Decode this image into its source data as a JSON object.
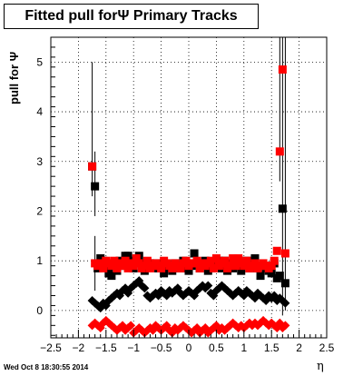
{
  "title": "Fitted pull forΨ   Primary Tracks",
  "datestamp": "Wed Oct  8 18:30:55 2014",
  "chart_data": {
    "type": "scatter",
    "title": "Fitted pull forΨ   Primary Tracks",
    "xlabel": "η",
    "ylabel": "pull for Ψ",
    "xlim": [
      -2.5,
      2.5
    ],
    "ylim": [
      -0.55,
      5.5
    ],
    "grid": true,
    "xticks": [
      -2.5,
      -2,
      -1.5,
      -1,
      -0.5,
      0,
      0.5,
      1,
      1.5,
      2,
      2.5
    ],
    "xtick_labels": [
      "−2.5",
      "−2",
      "−1.5",
      "−1",
      "−0.5",
      "0",
      "0.5",
      "1",
      "1.5",
      "2",
      "2.5"
    ],
    "yticks": [
      0,
      1,
      2,
      3,
      4,
      5
    ],
    "ytick_labels": [
      "0",
      "1",
      "2",
      "3",
      "4",
      "5"
    ],
    "x": [
      -1.75,
      -1.7,
      -1.65,
      -1.6,
      -1.55,
      -1.5,
      -1.45,
      -1.4,
      -1.35,
      -1.3,
      -1.25,
      -1.2,
      -1.15,
      -1.1,
      -1.05,
      -1.0,
      -0.95,
      -0.9,
      -0.85,
      -0.8,
      -0.75,
      -0.7,
      -0.65,
      -0.6,
      -0.55,
      -0.5,
      -0.45,
      -0.4,
      -0.35,
      -0.3,
      -0.25,
      -0.2,
      -0.15,
      -0.1,
      -0.05,
      0.0,
      0.05,
      0.1,
      0.15,
      0.2,
      0.25,
      0.3,
      0.35,
      0.4,
      0.45,
      0.5,
      0.55,
      0.6,
      0.65,
      0.7,
      0.75,
      0.8,
      0.85,
      0.9,
      0.95,
      1.0,
      1.05,
      1.1,
      1.15,
      1.2,
      1.25,
      1.3,
      1.35,
      1.4,
      1.45,
      1.5,
      1.55,
      1.6,
      1.65,
      1.7,
      1.75
    ],
    "series": [
      {
        "marker": "square",
        "color": "#000000",
        "values": [
          2.9,
          2.5,
          0.85,
          1.05,
          1.0,
          0.9,
          0.75,
          0.7,
          0.9,
          0.8,
          1.0,
          0.9,
          1.1,
          1.1,
          1.0,
          0.85,
          1.0,
          1.1,
          0.95,
          0.8,
          0.9,
          0.95,
          0.95,
          0.9,
          0.85,
          0.95,
          0.75,
          0.9,
          0.85,
          0.8,
          0.95,
          0.9,
          0.85,
          1.0,
          0.85,
          0.8,
          0.9,
          1.15,
          0.95,
          0.85,
          0.9,
          1.0,
          0.8,
          0.85,
          0.9,
          0.95,
          1.0,
          0.85,
          1.0,
          0.8,
          0.95,
          0.85,
          0.9,
          1.0,
          0.8,
          0.95,
          1.0,
          0.85,
          0.9,
          1.05,
          0.85,
          0.7,
          0.9,
          0.85,
          0.8,
          0.75,
          0.95,
          0.65,
          0.7,
          2.05,
          0.55
        ]
      },
      {
        "marker": "square",
        "color": "#ff0000",
        "values": [
          2.9,
          0.95,
          0.9,
          0.95,
          0.85,
          1.0,
          0.95,
          0.9,
          1.0,
          0.85,
          0.95,
          0.9,
          1.0,
          0.85,
          0.95,
          0.9,
          1.05,
          0.95,
          0.85,
          0.9,
          1.0,
          0.85,
          0.9,
          0.95,
          0.9,
          0.85,
          1.0,
          0.95,
          0.9,
          0.85,
          0.95,
          0.9,
          0.85,
          0.95,
          1.0,
          0.9,
          0.95,
          0.95,
          1.0,
          0.85,
          0.95,
          0.9,
          0.95,
          1.0,
          0.85,
          1.05,
          0.9,
          0.95,
          1.0,
          0.85,
          0.9,
          1.05,
          0.9,
          1.05,
          0.95,
          0.9,
          1.0,
          0.85,
          0.9,
          0.95,
          0.85,
          0.9,
          0.95,
          0.9,
          0.85,
          0.9,
          1.0,
          1.2,
          3.2,
          4.85,
          1.15
        ]
      },
      {
        "marker": "diamond",
        "color": "#000000",
        "values": [
          0.2,
          0.15,
          0.1,
          0.05,
          0.15,
          0.1,
          0.2,
          0.25,
          0.3,
          0.35,
          0.3,
          0.4,
          0.45,
          0.35,
          0.45,
          0.5,
          0.55,
          0.6,
          0.5,
          0.45,
          0.3,
          0.25,
          0.3,
          0.35,
          0.3,
          0.4,
          0.35,
          0.3,
          0.4,
          0.35,
          0.4,
          0.45,
          0.35,
          0.3,
          0.35,
          0.4,
          0.35,
          0.3,
          0.4,
          0.45,
          0.5,
          0.45,
          0.5,
          0.35,
          0.3,
          0.4,
          0.45,
          0.5,
          0.45,
          0.4,
          0.35,
          0.3,
          0.35,
          0.4,
          0.35,
          0.3,
          0.4,
          0.35,
          0.3,
          0.25,
          0.35,
          0.3,
          0.25,
          0.2,
          0.3,
          0.25,
          0.3,
          0.2,
          0.25,
          0.2,
          0.15
        ]
      },
      {
        "marker": "diamond",
        "color": "#ff0000",
        "values": [
          -0.3,
          -0.25,
          -0.3,
          -0.35,
          -0.25,
          -0.2,
          -0.25,
          -0.3,
          -0.35,
          -0.4,
          -0.35,
          -0.3,
          -0.4,
          -0.35,
          -0.3,
          -0.45,
          -0.4,
          -0.35,
          -0.4,
          -0.45,
          -0.4,
          -0.35,
          -0.4,
          -0.3,
          -0.35,
          -0.4,
          -0.35,
          -0.3,
          -0.4,
          -0.45,
          -0.35,
          -0.4,
          -0.35,
          -0.3,
          -0.35,
          -0.4,
          -0.45,
          -0.4,
          -0.35,
          -0.45,
          -0.4,
          -0.35,
          -0.45,
          -0.4,
          -0.35,
          -0.3,
          -0.4,
          -0.35,
          -0.4,
          -0.35,
          -0.3,
          -0.25,
          -0.3,
          -0.35,
          -0.3,
          -0.35,
          -0.3,
          -0.25,
          -0.3,
          -0.25,
          -0.3,
          -0.25,
          -0.2,
          -0.25,
          -0.3,
          -0.25,
          -0.3,
          -0.35,
          -0.25,
          -0.35,
          -0.3
        ]
      }
    ],
    "errors": [
      {
        "x": -1.75,
        "low": 2.3,
        "high": 5.0,
        "color": "#000000"
      },
      {
        "x": -1.7,
        "low": 1.9,
        "high": 3.2,
        "color": "#000000"
      },
      {
        "x": -1.7,
        "low": 0.4,
        "high": 1.5,
        "color": "#000000"
      },
      {
        "x": 1.65,
        "low": 2.6,
        "high": 5.5,
        "color": "#000000"
      },
      {
        "x": 1.7,
        "low": -0.1,
        "high": 5.5,
        "color": "#000000"
      },
      {
        "x": 1.75,
        "low": 0.0,
        "high": 5.5,
        "color": "#000000"
      }
    ]
  }
}
